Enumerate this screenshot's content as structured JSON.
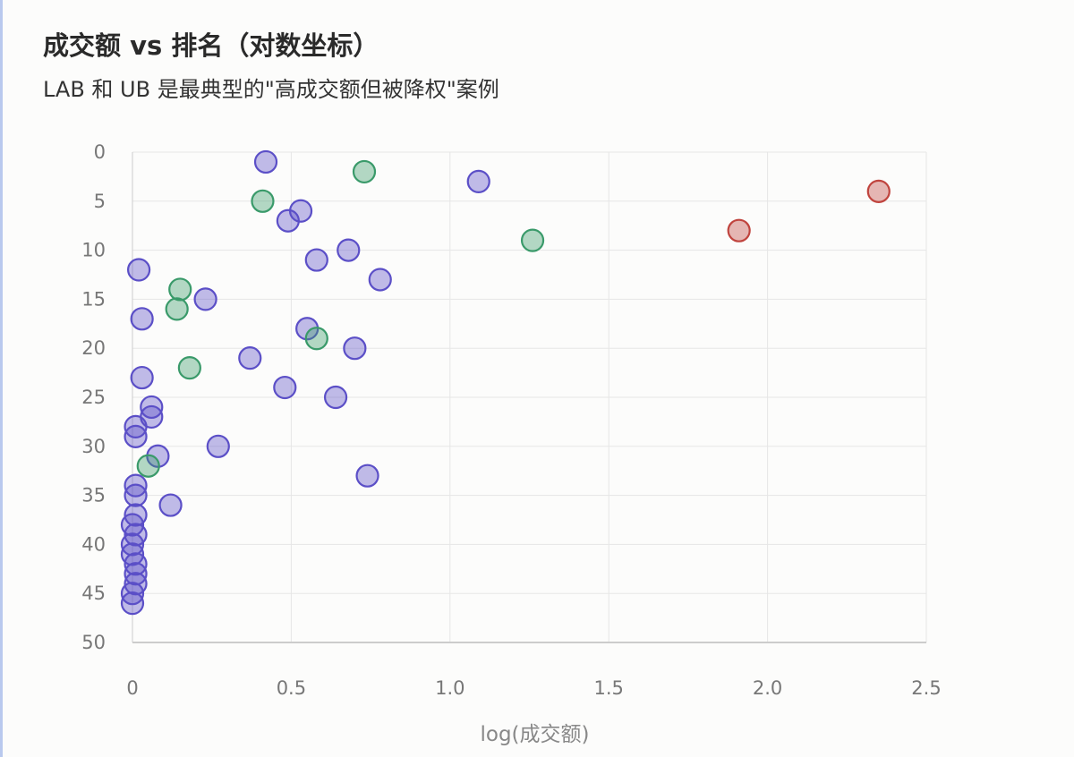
{
  "header": {
    "title": "成交额 vs 排名（对数坐标）",
    "subtitle": "LAB 和 UB 是最典型的\"高成交额但被降权\"案例"
  },
  "colors": {
    "series_normal": "#5b4fc7",
    "series_green": "#3a9a6a",
    "series_red": "#c0443e",
    "grid": "#e6e6e6",
    "axis": "#cccccc"
  },
  "chart_data": {
    "type": "scatter",
    "title": "成交额 vs 排名（对数坐标）",
    "subtitle": "LAB 和 UB 是最典型的\"高成交额但被降权\"案例",
    "xlabel": "log(成交额)",
    "ylabel": "",
    "xlim": [
      0,
      2.5
    ],
    "ylim": [
      0,
      50
    ],
    "y_inverted": true,
    "x_ticks": [
      "0",
      "0.5",
      "1.0",
      "1.5",
      "2.0",
      "2.5"
    ],
    "y_ticks": [
      "0",
      "5",
      "10",
      "15",
      "20",
      "25",
      "30",
      "35",
      "40",
      "45",
      "50"
    ],
    "grid": true,
    "series": [
      {
        "color_key": "series_normal",
        "points": [
          [
            0.42,
            1
          ],
          [
            1.09,
            3
          ],
          [
            0.53,
            6
          ],
          [
            0.49,
            7
          ],
          [
            0.68,
            10
          ],
          [
            0.58,
            11
          ],
          [
            0.02,
            12
          ],
          [
            0.78,
            13
          ],
          [
            0.23,
            15
          ],
          [
            0.03,
            17
          ],
          [
            0.55,
            18
          ],
          [
            0.7,
            20
          ],
          [
            0.37,
            21
          ],
          [
            0.03,
            23
          ],
          [
            0.48,
            24
          ],
          [
            0.64,
            25
          ],
          [
            0.06,
            26
          ],
          [
            0.06,
            27
          ],
          [
            0.01,
            28
          ],
          [
            0.01,
            29
          ],
          [
            0.27,
            30
          ],
          [
            0.08,
            31
          ],
          [
            0.74,
            33
          ],
          [
            0.01,
            34
          ],
          [
            0.01,
            35
          ],
          [
            0.12,
            36
          ],
          [
            0.01,
            37
          ],
          [
            0.0,
            38
          ],
          [
            0.01,
            39
          ],
          [
            0.0,
            40
          ],
          [
            0.0,
            41
          ],
          [
            0.01,
            42
          ],
          [
            0.01,
            43
          ],
          [
            0.01,
            44
          ],
          [
            0.0,
            45
          ],
          [
            0.0,
            46
          ]
        ]
      },
      {
        "color_key": "series_green",
        "points": [
          [
            0.73,
            2
          ],
          [
            0.41,
            5
          ],
          [
            1.26,
            9
          ],
          [
            0.15,
            14
          ],
          [
            0.14,
            16
          ],
          [
            0.58,
            19
          ],
          [
            0.18,
            22
          ],
          [
            0.05,
            32
          ]
        ]
      },
      {
        "color_key": "series_red",
        "points": [
          [
            2.35,
            4
          ],
          [
            1.91,
            8
          ]
        ]
      }
    ]
  }
}
